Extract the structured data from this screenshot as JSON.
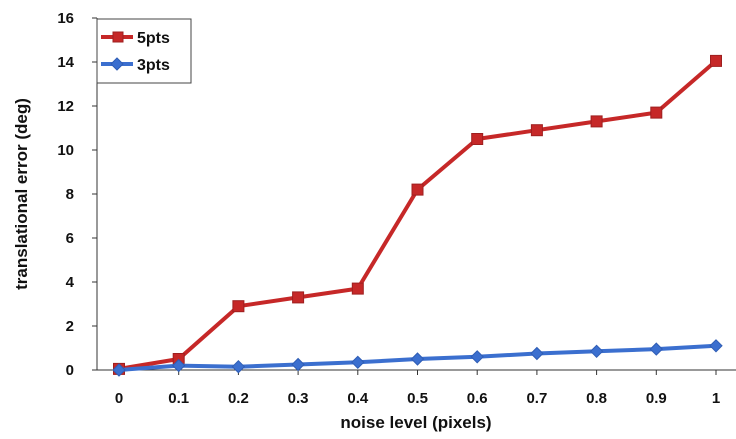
{
  "chart_data": {
    "type": "line",
    "title": "",
    "xlabel": "noise level (pixels)",
    "ylabel": "translational error (deg)",
    "x": [
      "0",
      "0.1",
      "0.2",
      "0.3",
      "0.4",
      "0.5",
      "0.6",
      "0.7",
      "0.8",
      "0.9",
      "1"
    ],
    "ylim": [
      0,
      16
    ],
    "yticks": [
      "0",
      "2",
      "4",
      "6",
      "8",
      "10",
      "12",
      "14",
      "16"
    ],
    "grid": false,
    "legend_position": "top-left",
    "series": [
      {
        "name": "5pts",
        "color": "#c62828",
        "marker": "square",
        "values": [
          0.05,
          0.5,
          2.9,
          3.3,
          3.7,
          8.2,
          10.5,
          10.9,
          11.3,
          11.7,
          14.05
        ]
      },
      {
        "name": "3pts",
        "color": "#3b6fcf",
        "marker": "diamond",
        "values": [
          0.0,
          0.2,
          0.15,
          0.25,
          0.35,
          0.5,
          0.6,
          0.75,
          0.85,
          0.95,
          1.1
        ]
      }
    ]
  }
}
